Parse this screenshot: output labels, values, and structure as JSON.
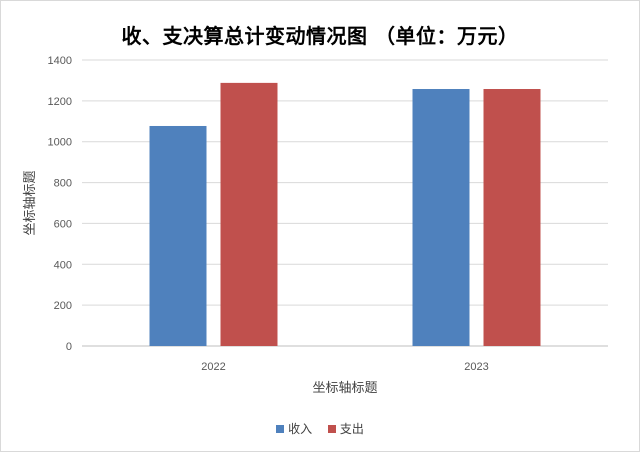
{
  "chart_data": {
    "type": "bar",
    "title": "收、支决算总计变动情况图 （单位：万元）",
    "xlabel": "坐标轴标题",
    "ylabel": "坐标轴标题",
    "categories": [
      "2022",
      "2023"
    ],
    "ylim": [
      0,
      1400
    ],
    "yticks": [
      0,
      200,
      400,
      600,
      800,
      1000,
      1200,
      1400
    ],
    "grid": true,
    "legend_position": "bottom",
    "series": [
      {
        "name": "收入",
        "values": [
          1077,
          1258
        ],
        "color": "#4f81bd"
      },
      {
        "name": "支出",
        "values": [
          1288,
          1258
        ],
        "color": "#c0504d"
      }
    ]
  }
}
